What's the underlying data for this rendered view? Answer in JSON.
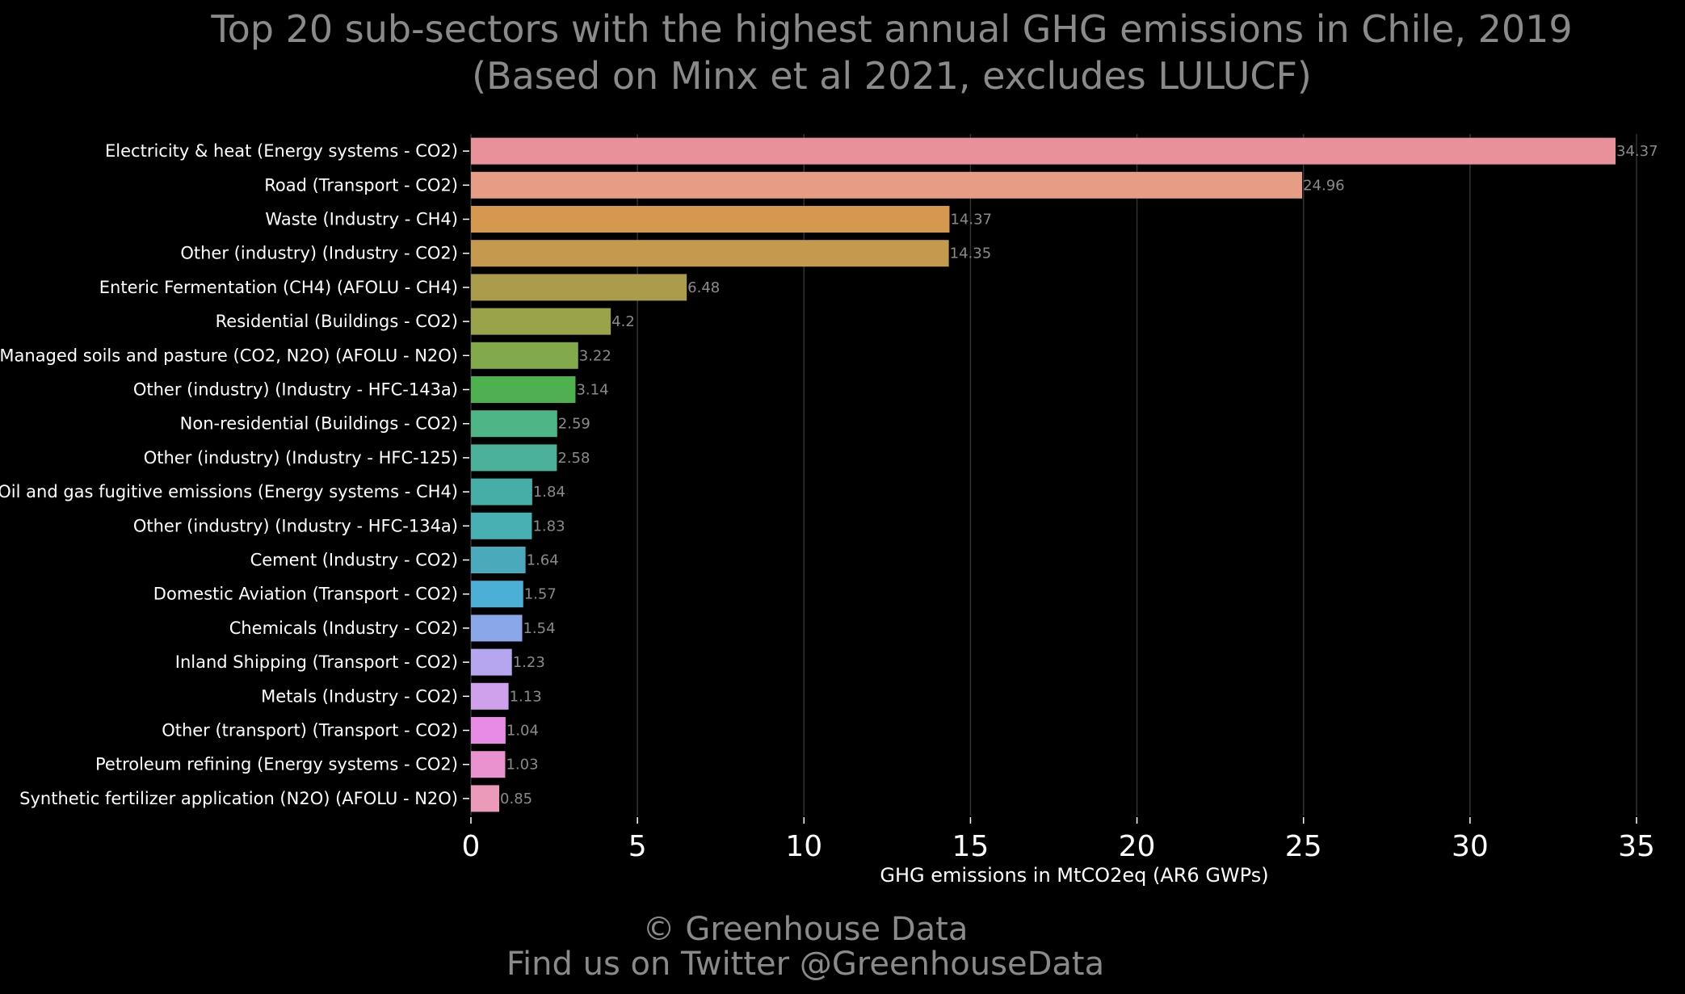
{
  "chart_data": {
    "type": "bar",
    "orientation": "horizontal",
    "title": "Top 20 sub-sectors with the highest annual GHG emissions in Chile, 2019",
    "subtitle": "(Based on Minx et al 2021, excludes LULUCF)",
    "xlabel": "GHG emissions in MtCO2eq (AR6 GWPs)",
    "ylabel": "",
    "xlim": [
      0,
      35
    ],
    "xticks": [
      0,
      5,
      10,
      15,
      20,
      25,
      30,
      35
    ],
    "grid": "vertical",
    "legend": "none",
    "categories": [
      "Electricity & heat (Energy systems - CO2)",
      "Road (Transport - CO2)",
      "Waste (Industry - CH4)",
      "Other (industry) (Industry - CO2)",
      "Enteric Fermentation (CH4) (AFOLU - CH4)",
      "Residential (Buildings - CO2)",
      "Managed soils and pasture (CO2, N2O) (AFOLU - N2O)",
      "Other (industry) (Industry - HFC-143a)",
      "Non-residential (Buildings - CO2)",
      "Other (industry) (Industry - HFC-125)",
      "Oil and gas fugitive emissions (Energy systems - CH4)",
      "Other (industry) (Industry - HFC-134a)",
      "Cement (Industry - CO2)",
      "Domestic Aviation (Transport - CO2)",
      "Chemicals (Industry - CO2)",
      "Inland Shipping (Transport - CO2)",
      "Metals (Industry - CO2)",
      "Other (transport) (Transport - CO2)",
      "Petroleum refining (Energy systems - CO2)",
      "Synthetic fertilizer application (N2O) (AFOLU - N2O)"
    ],
    "values": [
      34.37,
      24.96,
      14.37,
      14.35,
      6.48,
      4.2,
      3.22,
      3.14,
      2.59,
      2.58,
      1.84,
      1.83,
      1.64,
      1.57,
      1.54,
      1.23,
      1.13,
      1.04,
      1.03,
      0.85
    ],
    "value_labels": [
      "34.37",
      "24.96",
      "14.37",
      "14.35",
      "6.48",
      "4.2",
      "3.22",
      "3.14",
      "2.59",
      "2.58",
      "1.84",
      "1.83",
      "1.64",
      "1.57",
      "1.54",
      "1.23",
      "1.13",
      "1.04",
      "1.03",
      "0.85"
    ],
    "colors": [
      "#e8919b",
      "#e79c86",
      "#d6974f",
      "#c59a4f",
      "#aa9c4a",
      "#9aa34a",
      "#82aa4a",
      "#4fb04f",
      "#4db586",
      "#4bb19a",
      "#47aea7",
      "#48b0b2",
      "#4aaabb",
      "#4bafd6",
      "#8aa7ea",
      "#b5a6ef",
      "#cfa0ec",
      "#e88be7",
      "#ea92cf",
      "#eb9ab9"
    ]
  },
  "credits": {
    "line1": "© Greenhouse Data",
    "line2": "Find us on Twitter @GreenhouseData"
  }
}
